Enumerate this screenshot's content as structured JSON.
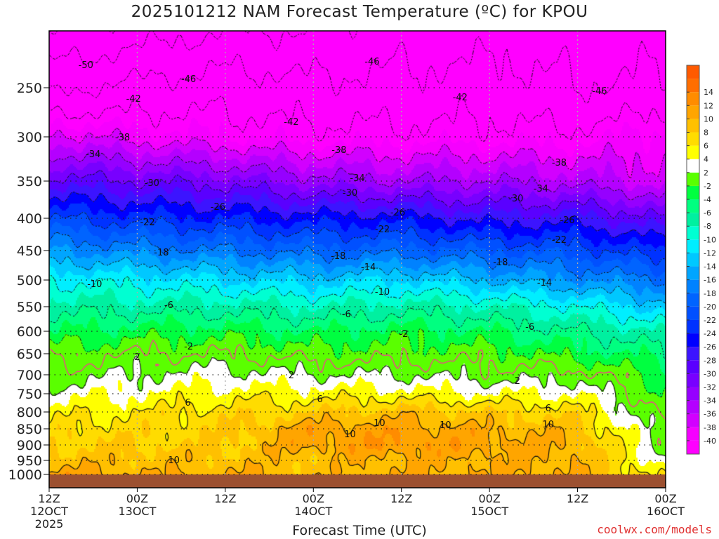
{
  "chart_data": {
    "type": "heatmap",
    "title": "2025101212 NAM Forecast Temperature (ºC) for KPOU",
    "xlabel": "Forecast Time (UTC)",
    "ylabel": "",
    "watermark": "coolwx.com/models",
    "x_unit": "forecast hour",
    "xlim": [
      0,
      84
    ],
    "ylim": [
      200,
      1020
    ],
    "y_ticks": [
      250,
      300,
      350,
      400,
      450,
      500,
      550,
      600,
      650,
      700,
      750,
      800,
      850,
      900,
      950,
      1000
    ],
    "x_ticks": [
      {
        "hour": 0,
        "line1": "12Z",
        "line2": "12OCT",
        "line3": "2025"
      },
      {
        "hour": 12,
        "line1": "00Z",
        "line2": "13OCT"
      },
      {
        "hour": 24,
        "line1": "12Z",
        "line2": ""
      },
      {
        "hour": 36,
        "line1": "00Z",
        "line2": "14OCT"
      },
      {
        "hour": 48,
        "line1": "12Z",
        "line2": ""
      },
      {
        "hour": 60,
        "line1": "00Z",
        "line2": "15OCT"
      },
      {
        "hour": 72,
        "line1": "12Z",
        "line2": ""
      },
      {
        "hour": 84,
        "line1": "00Z",
        "line2": "16OCT"
      }
    ],
    "grid": true,
    "pressure_levels": [
      200,
      250,
      300,
      350,
      400,
      450,
      500,
      550,
      600,
      650,
      700,
      750,
      800,
      850,
      900,
      950,
      1000
    ],
    "profiles": [
      {
        "hour": 0,
        "temps": [
          -54,
          -47,
          -37,
          -29,
          -22,
          -16,
          -10,
          -7,
          -4,
          -1,
          1,
          3,
          5,
          7,
          8,
          9,
          11
        ]
      },
      {
        "hour": 12,
        "temps": [
          -52,
          -45,
          -39,
          -30,
          -23,
          -17,
          -11,
          -7,
          -3,
          0,
          2,
          4,
          6,
          7,
          8,
          9,
          10
        ]
      },
      {
        "hour": 24,
        "temps": [
          -50,
          -44,
          -40,
          -31,
          -24,
          -18,
          -12,
          -7,
          -3,
          0,
          3,
          5,
          7,
          8,
          8,
          9,
          10
        ]
      },
      {
        "hour": 36,
        "temps": [
          -50,
          -45,
          -41,
          -33,
          -25,
          -19,
          -13,
          -8,
          -4,
          -1,
          2,
          5,
          8,
          11,
          11,
          9,
          9
        ]
      },
      {
        "hour": 48,
        "temps": [
          -48,
          -45,
          -41,
          -34,
          -25,
          -19,
          -12,
          -7,
          -3,
          -1,
          2,
          5,
          9,
          11,
          12,
          10,
          10
        ]
      },
      {
        "hour": 60,
        "temps": [
          -48,
          -44,
          -41,
          -34,
          -27,
          -20,
          -14,
          -8,
          -4,
          -1,
          1,
          4,
          8,
          10,
          11,
          10,
          10
        ]
      },
      {
        "hour": 72,
        "temps": [
          -48,
          -46,
          -41,
          -35,
          -27,
          -21,
          -16,
          -10,
          -6,
          -3,
          1,
          4,
          7,
          9,
          10,
          10,
          10
        ]
      },
      {
        "hour": 84,
        "temps": [
          -48,
          -45,
          -39,
          -37,
          -30,
          -24,
          -18,
          -13,
          -8,
          -5,
          -3,
          -2,
          -1,
          0,
          1,
          3,
          5
        ]
      }
    ],
    "colorbar": {
      "boundaries": [
        -40,
        -38,
        -36,
        -34,
        -32,
        -30,
        -28,
        -26,
        -24,
        -22,
        -20,
        -18,
        -16,
        -14,
        -12,
        -10,
        -8,
        -6,
        -4,
        -2,
        2,
        4,
        6,
        8,
        10,
        12,
        14
      ],
      "labels": [
        "-40",
        "-38",
        "-36",
        "-34",
        "-32",
        "-30",
        "-28",
        "-26",
        "-24",
        "-22",
        "-20",
        "-18",
        "-16",
        "-14",
        "-12",
        "-10",
        "-8",
        "-6",
        "-4",
        "-2",
        "2",
        "4",
        "6",
        "8",
        "10",
        "12",
        "14"
      ],
      "colors": [
        "#ff00ff",
        "#f500ff",
        "#d200ff",
        "#b400ff",
        "#9600ff",
        "#7800ff",
        "#5a00ff",
        "#3c14ff",
        "#0000ff",
        "#0032ff",
        "#0050ff",
        "#0064ff",
        "#0082ff",
        "#00a5ff",
        "#00c8ff",
        "#00eeff",
        "#00ffd2",
        "#00f0a0",
        "#00ff80",
        "#00ff40",
        "#5aff00",
        "#ffffff",
        "#ffff00",
        "#ffdc00",
        "#ffc000",
        "#ffa500",
        "#ff8c00",
        "#ff6e00",
        "#ff5a00"
      ]
    },
    "contour_interval": 4,
    "freezing_line_color": "#ff3399",
    "ground_color": "#9c5030",
    "contour_labels": [
      {
        "level": -50,
        "hour": 5
      },
      {
        "level": -46,
        "hour": 19
      },
      {
        "level": -46,
        "hour": 44
      },
      {
        "level": -46,
        "hour": 75
      },
      {
        "level": -42,
        "hour": 11.5
      },
      {
        "level": -42,
        "hour": 33
      },
      {
        "level": -42,
        "hour": 56
      },
      {
        "level": -38,
        "hour": 10
      },
      {
        "level": -38,
        "hour": 39.5
      },
      {
        "level": -38,
        "hour": 69.5
      },
      {
        "level": -34,
        "hour": 6
      },
      {
        "level": -34,
        "hour": 42
      },
      {
        "level": -34,
        "hour": 67
      },
      {
        "level": -30,
        "hour": 14
      },
      {
        "level": -30,
        "hour": 41
      },
      {
        "level": -30,
        "hour": 63.6
      },
      {
        "level": -26,
        "hour": 23
      },
      {
        "level": -26,
        "hour": 47.5
      },
      {
        "level": -26,
        "hour": 70.6
      },
      {
        "level": -22,
        "hour": 13.4
      },
      {
        "level": -22,
        "hour": 45.4
      },
      {
        "level": -22,
        "hour": 69.5
      },
      {
        "level": -18,
        "hour": 15.3
      },
      {
        "level": -18,
        "hour": 39.4
      },
      {
        "level": -18,
        "hour": 61.5
      },
      {
        "level": -14,
        "hour": 43.5
      },
      {
        "level": -14,
        "hour": 67.5
      },
      {
        "level": -10,
        "hour": 6.2
      },
      {
        "level": -10,
        "hour": 45.4
      },
      {
        "level": -6,
        "hour": 16.3
      },
      {
        "level": -6,
        "hour": 40.5
      },
      {
        "level": -6,
        "hour": 65.5
      },
      {
        "level": -2,
        "hour": 19
      },
      {
        "level": -2,
        "hour": 48.3
      },
      {
        "level": 2,
        "hour": 12
      },
      {
        "level": 2,
        "hour": 33
      },
      {
        "level": 2,
        "hour": 63.8
      },
      {
        "level": 6,
        "hour": 18.9
      },
      {
        "level": 6,
        "hour": 36.9
      },
      {
        "level": 6,
        "hour": 68
      },
      {
        "level": 10,
        "hour": 17
      },
      {
        "level": 10,
        "hour": 41
      },
      {
        "level": 10,
        "hour": 45
      },
      {
        "level": 10,
        "hour": 54
      },
      {
        "level": 10,
        "hour": 68
      }
    ]
  }
}
